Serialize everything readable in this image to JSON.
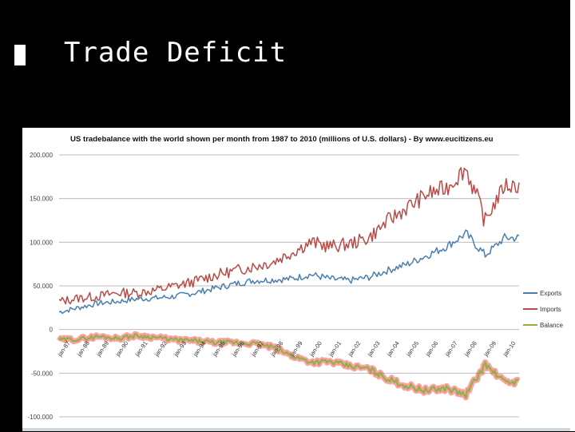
{
  "slide": {
    "title": "Trade Deficit"
  },
  "colors": {
    "exports": "#4a7eb0",
    "imports": "#b84b45",
    "balance": "#8fb04a",
    "balance_glow": "#ff2a2a"
  },
  "chart_data": {
    "type": "line",
    "title": "US tradebalance with the world shown per month from 1987 to 2010 (millions of U.S. dollars) - By www.eucitizens.eu",
    "ylabel": "(millions of U.S. dollars)",
    "ylim": [
      -100000,
      200000
    ],
    "yticks": [
      "200.000",
      "150.000",
      "100.000",
      "50.000",
      "0",
      "-50.000",
      "-100.000"
    ],
    "xticks": [
      "jan-87",
      "jan-88",
      "jan-89",
      "jan-90",
      "jan-91",
      "jan-92",
      "jan-93",
      "jan-94",
      "jan-95",
      "jan-96",
      "jan-97",
      "jan-98",
      "jan-99",
      "jan-00",
      "jan-01",
      "jan-02",
      "jan-03",
      "jan-04",
      "jan-05",
      "jan-06",
      "jan-07",
      "jan-08",
      "jan-09",
      "jan-10"
    ],
    "x": [
      1987,
      1988,
      1989,
      1990,
      1991,
      1992,
      1993,
      1994,
      1995,
      1996,
      1997,
      1998,
      1999,
      2000,
      2001,
      2002,
      2003,
      2004,
      2005,
      2006,
      2007,
      2008,
      2009,
      2010
    ],
    "grid": true,
    "legend": "right",
    "series": [
      {
        "name": "Exports",
        "values": [
          20000,
          25000,
          30000,
          32000,
          35000,
          36000,
          38000,
          42000,
          47000,
          52000,
          56000,
          57000,
          58000,
          63000,
          58000,
          56000,
          60000,
          68000,
          75000,
          85000,
          95000,
          110000,
          85000,
          105000
        ]
      },
      {
        "name": "Imports",
        "values": [
          32000,
          36000,
          38000,
          42000,
          42000,
          45000,
          50000,
          55000,
          62000,
          67000,
          72000,
          77000,
          88000,
          100000,
          95000,
          98000,
          105000,
          125000,
          140000,
          155000,
          162000,
          185000,
          125000,
          165000
        ]
      },
      {
        "name": "Balance",
        "values": [
          -12000,
          -11000,
          -8000,
          -10000,
          -7000,
          -9000,
          -12000,
          -13000,
          -15000,
          -15000,
          -16000,
          -20000,
          -30000,
          -37000,
          -37000,
          -42000,
          -45000,
          -57000,
          -65000,
          -70000,
          -67000,
          -75000,
          -40000,
          -60000
        ]
      }
    ]
  }
}
